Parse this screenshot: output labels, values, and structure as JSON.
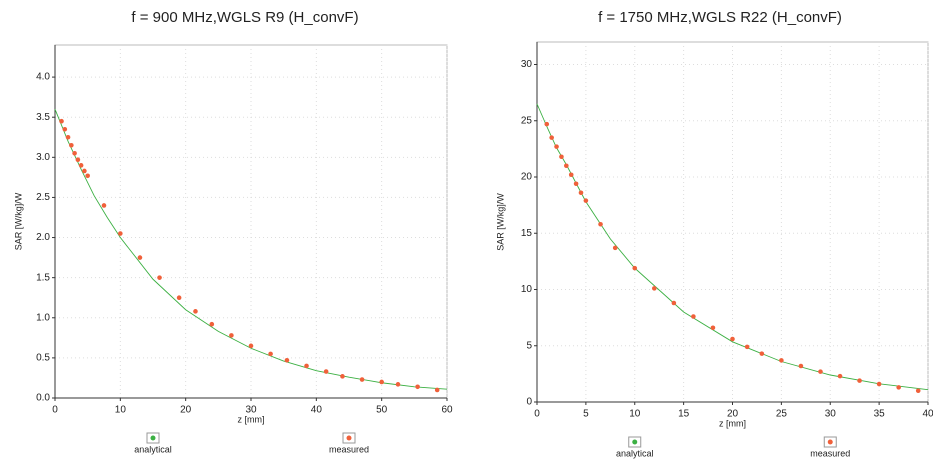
{
  "chart_data": [
    {
      "type": "scatter",
      "title": "f = 900 MHz,WGLS R9 (H_convF)",
      "x_label": "z [mm]",
      "y_label": "SAR [W/kg]/W",
      "xlim": [
        0,
        60
      ],
      "xticks": [
        0,
        10,
        20,
        30,
        40,
        50,
        60
      ],
      "ylim": [
        0,
        4.4
      ],
      "yticks": [
        {
          "value": 0,
          "label": "0.0"
        },
        0.5,
        {
          "value": 1,
          "label": "1.0"
        },
        1.5,
        {
          "value": 2,
          "label": "2.0"
        },
        2.5,
        {
          "value": 3,
          "label": "3.0"
        },
        3.5,
        {
          "value": 4,
          "label": "4.0"
        }
      ],
      "grid": true,
      "series": [
        {
          "name": "analytical",
          "color": "#3cb043",
          "mode": "line",
          "x": [
            0,
            1,
            2,
            4,
            6,
            8,
            10,
            15,
            20,
            25,
            30,
            35,
            40,
            45,
            50,
            55,
            60
          ],
          "values": [
            3.6,
            3.4,
            3.2,
            2.85,
            2.52,
            2.25,
            2.0,
            1.48,
            1.1,
            0.83,
            0.62,
            0.46,
            0.34,
            0.26,
            0.19,
            0.14,
            0.11
          ]
        },
        {
          "name": "measured",
          "color": "#f0603a",
          "mode": "markers",
          "x": [
            1,
            1.5,
            2,
            2.5,
            3,
            3.5,
            4,
            4.5,
            5,
            7.5,
            10,
            13,
            16,
            19,
            21.5,
            24,
            27,
            30,
            33,
            35.5,
            38.5,
            41.5,
            44,
            47,
            50,
            52.5,
            55.5,
            58.5
          ],
          "values": [
            3.45,
            3.35,
            3.25,
            3.15,
            3.05,
            2.97,
            2.9,
            2.83,
            2.77,
            2.4,
            2.05,
            1.75,
            1.5,
            1.25,
            1.08,
            0.92,
            0.78,
            0.65,
            0.55,
            0.47,
            0.4,
            0.33,
            0.27,
            0.23,
            0.2,
            0.17,
            0.14,
            0.1
          ]
        }
      ]
    },
    {
      "type": "scatter",
      "title": "f = 1750 MHz,WGLS R22 (H_convF)",
      "x_label": "z [mm]",
      "y_label": "SAR [W/kg]/W",
      "xlim": [
        0,
        40
      ],
      "xticks": [
        0,
        5,
        10,
        15,
        20,
        25,
        30,
        35,
        40
      ],
      "ylim": [
        0,
        32
      ],
      "yticks": [
        0,
        5,
        10,
        15,
        20,
        25,
        30
      ],
      "grid": true,
      "series": [
        {
          "name": "analytical",
          "color": "#3cb043",
          "mode": "line",
          "x": [
            0,
            1,
            2,
            3,
            5,
            7.5,
            10,
            15,
            20,
            25,
            30,
            35,
            40
          ],
          "values": [
            26.5,
            24.5,
            22.6,
            21.1,
            17.8,
            14.5,
            11.9,
            8.0,
            5.35,
            3.6,
            2.4,
            1.62,
            1.09
          ]
        },
        {
          "name": "measured",
          "color": "#f0603a",
          "mode": "markers",
          "x": [
            1,
            1.5,
            2,
            2.5,
            3,
            3.5,
            4,
            4.5,
            5,
            6.5,
            8,
            10,
            12,
            14,
            16,
            18,
            20,
            21.5,
            23,
            25,
            27,
            29,
            31,
            33,
            35,
            37,
            39
          ],
          "values": [
            24.7,
            23.5,
            22.7,
            21.8,
            21,
            20.2,
            19.4,
            18.6,
            17.9,
            15.8,
            13.7,
            11.9,
            10.1,
            8.8,
            7.6,
            6.6,
            5.6,
            4.9,
            4.3,
            3.7,
            3.2,
            2.7,
            2.3,
            1.9,
            1.6,
            1.3,
            1.0
          ]
        }
      ]
    }
  ]
}
